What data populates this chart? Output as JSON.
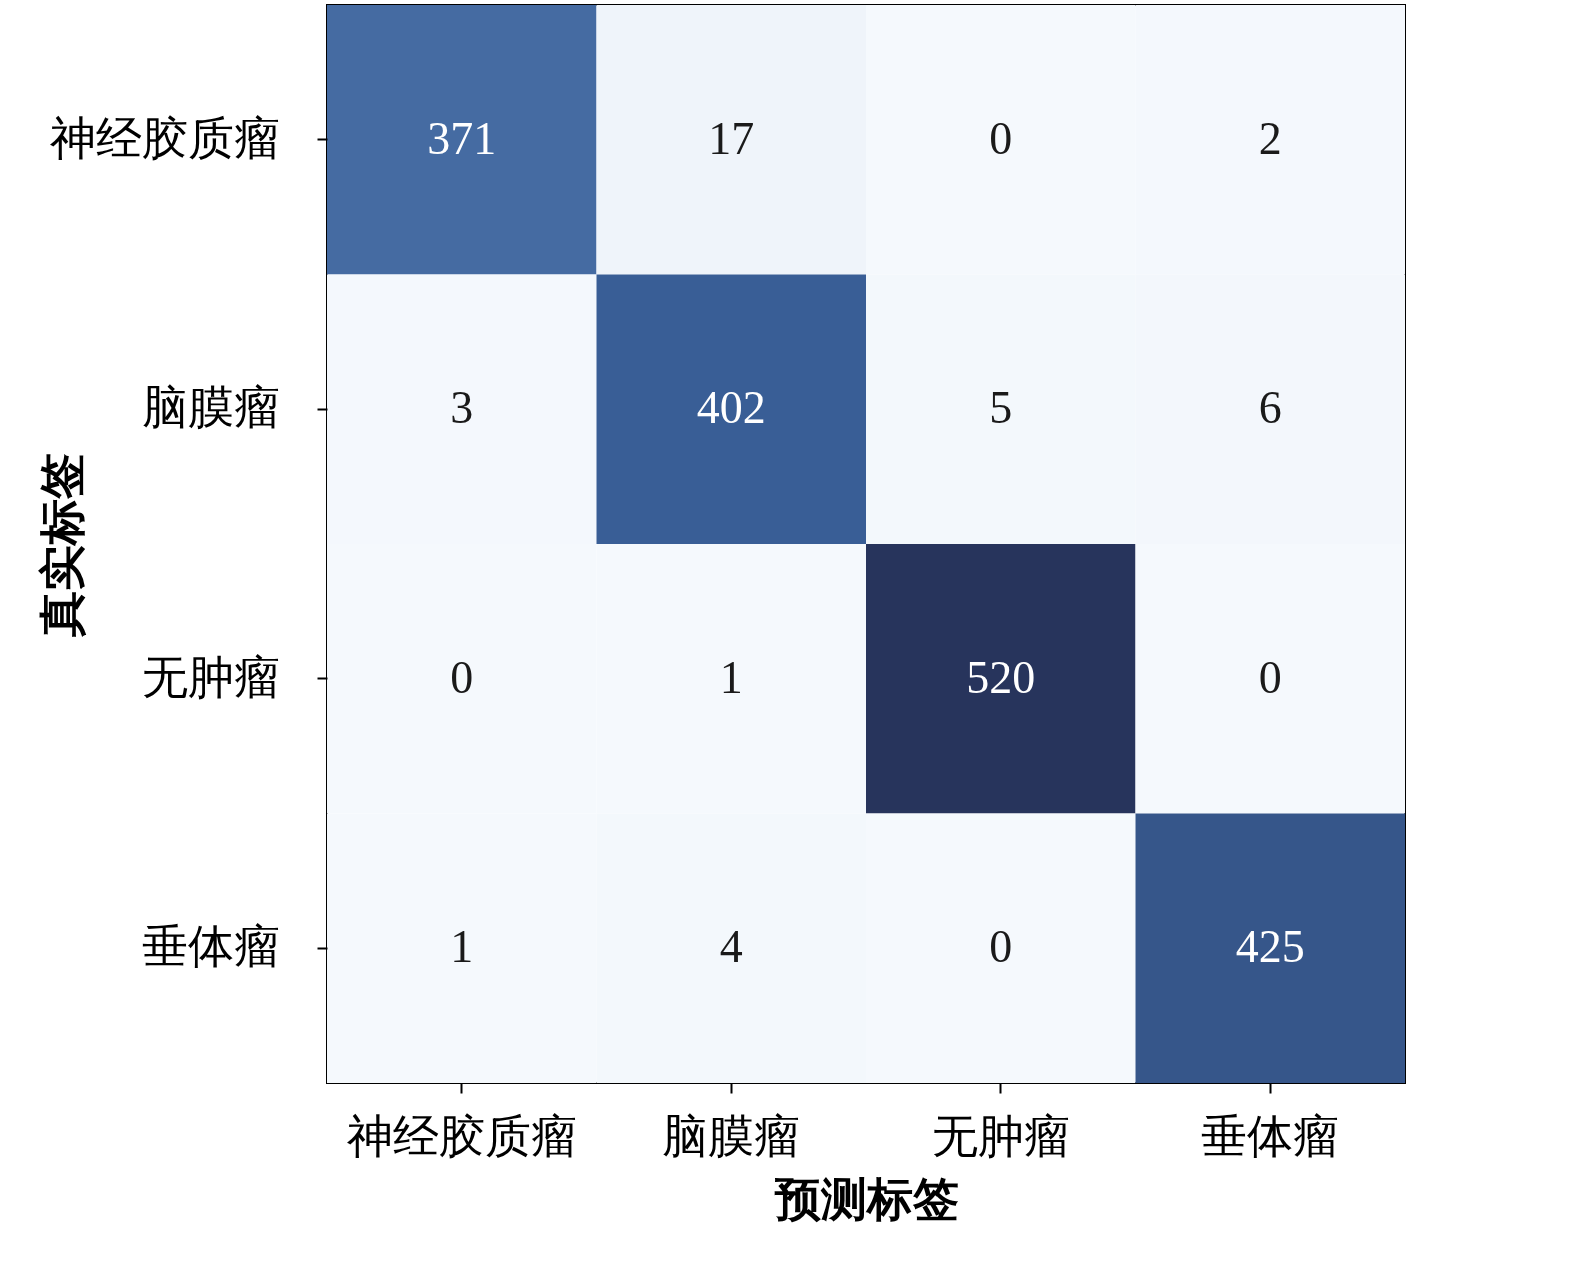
{
  "chart_data": {
    "type": "heatmap",
    "xlabel": "预测标签",
    "ylabel": "真实标签",
    "data_labels": true,
    "categories": [
      "神经胶质瘤",
      "脑膜瘤",
      "无肿瘤",
      "垂体瘤"
    ],
    "y_categories": [
      "神经胶质瘤",
      "脑膜瘤",
      "无肿瘤",
      "垂体瘤"
    ],
    "cells": [
      [
        371,
        17,
        0,
        2
      ],
      [
        3,
        402,
        5,
        6
      ],
      [
        0,
        1,
        520,
        0
      ],
      [
        1,
        4,
        0,
        425
      ]
    ]
  }
}
